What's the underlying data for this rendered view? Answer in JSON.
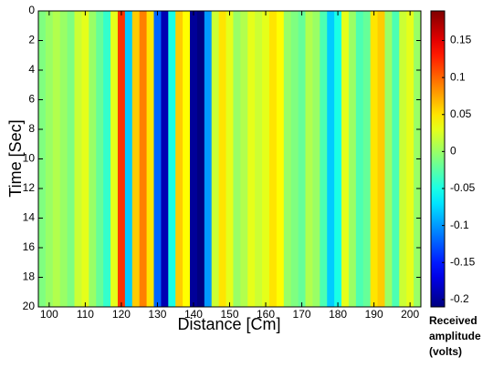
{
  "chart_data": {
    "type": "heatmap",
    "xlabel": "Distance [Cm]",
    "ylabel": "Time [Sec]",
    "colorbar_label": "Received amplitude (volts)",
    "colormap": "jet",
    "x": [
      98,
      100,
      102,
      104,
      106,
      108,
      110,
      112,
      114,
      116,
      118,
      120,
      122,
      124,
      126,
      128,
      130,
      132,
      134,
      136,
      138,
      140,
      142,
      144,
      146,
      148,
      150,
      152,
      154,
      156,
      158,
      160,
      162,
      164,
      166,
      168,
      170,
      172,
      174,
      176,
      178,
      180,
      182,
      184,
      186,
      188,
      190,
      192,
      194,
      196,
      198,
      200,
      202
    ],
    "values": [
      -0.01,
      0.0,
      0.01,
      0.0,
      -0.01,
      0.02,
      0.03,
      0.0,
      -0.02,
      -0.04,
      0.03,
      0.12,
      -0.08,
      0.06,
      0.09,
      0.05,
      -0.12,
      -0.19,
      -0.05,
      0.06,
      0.04,
      -0.2,
      -0.21,
      -0.1,
      0.02,
      0.05,
      0.03,
      0.0,
      0.01,
      0.03,
      0.02,
      0.03,
      0.05,
      0.04,
      0.0,
      -0.01,
      -0.02,
      0.01,
      0.0,
      -0.03,
      -0.08,
      -0.05,
      0.03,
      0.0,
      -0.03,
      -0.02,
      0.05,
      0.06,
      0.0,
      -0.03,
      0.02,
      0.03,
      0.0
    ],
    "xlim": [
      97,
      203
    ],
    "xticks": [
      100,
      110,
      120,
      130,
      140,
      150,
      160,
      170,
      180,
      190,
      200
    ],
    "ylim": [
      0,
      20
    ],
    "y_inverted": true,
    "yticks": [
      0,
      2,
      4,
      6,
      8,
      10,
      12,
      14,
      16,
      18,
      20
    ],
    "clim": [
      -0.21,
      0.19
    ],
    "cticks": [
      0.15,
      0.1,
      0.05,
      0,
      -0.05,
      -0.1,
      -0.15,
      -0.2
    ]
  }
}
